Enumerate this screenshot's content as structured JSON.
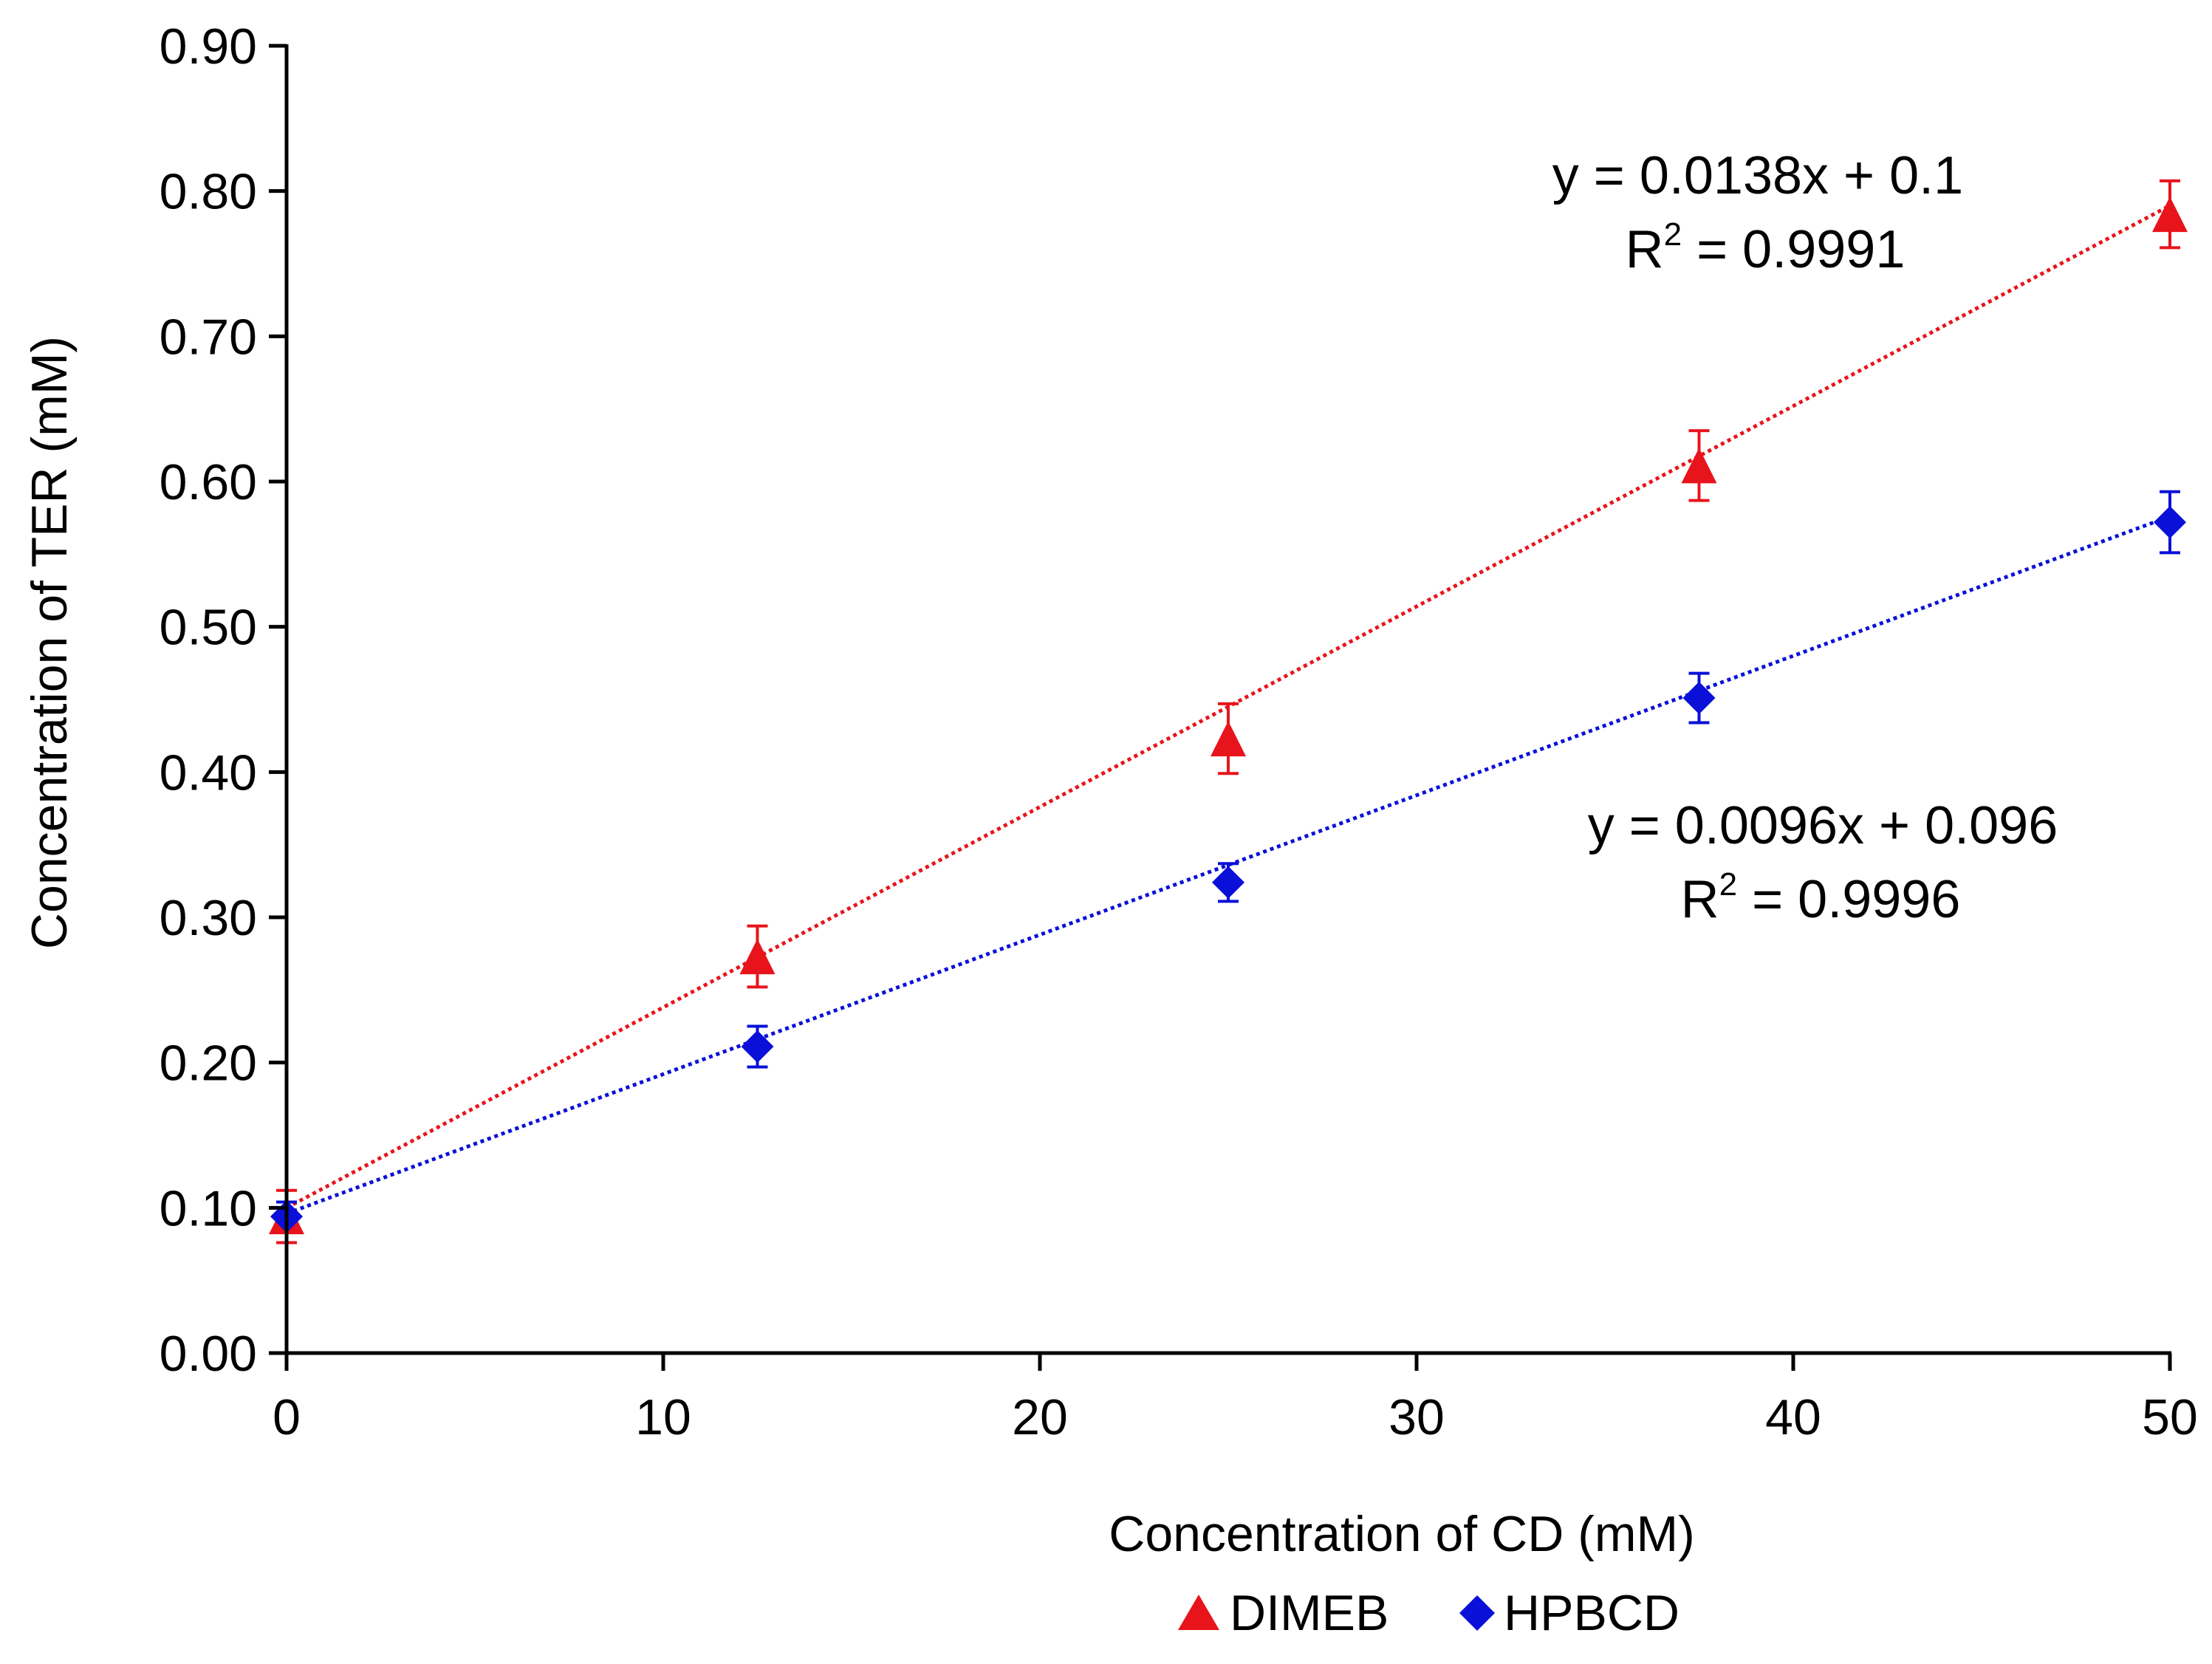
{
  "chart_data": {
    "type": "scatter",
    "xlabel": "Concentration of CD (mM)",
    "ylabel": "Concentration of TER (mM)",
    "xlim": [
      0,
      50
    ],
    "ylim": [
      0,
      0.9
    ],
    "x_ticks": [
      "0",
      "10",
      "20",
      "30",
      "40",
      "50"
    ],
    "y_ticks": [
      "0.00",
      "0.10",
      "0.20",
      "0.30",
      "0.40",
      "0.50",
      "0.60",
      "0.70",
      "0.80",
      "0.90"
    ],
    "grid": false,
    "legend_position": "bottom",
    "series": [
      {
        "name": "DIMEB",
        "marker": "triangle",
        "color": "#e8141b",
        "x": [
          0,
          12.5,
          25,
          37.5,
          50
        ],
        "y": [
          0.094,
          0.273,
          0.423,
          0.611,
          0.784
        ],
        "error": [
          0.018,
          0.021,
          0.024,
          0.024,
          0.023
        ],
        "trendline": {
          "slope": 0.0138,
          "intercept": 0.1
        },
        "equation": "y = 0.0138x + 0.1",
        "r2_prefix": "R",
        "r2_sup": "2",
        "r2_value": " = 0.9991"
      },
      {
        "name": "HPBCD",
        "marker": "diamond",
        "color": "#0a10d8",
        "x": [
          0,
          12.5,
          25,
          37.5,
          50
        ],
        "y": [
          0.094,
          0.211,
          0.324,
          0.451,
          0.572
        ],
        "error": [
          0.01,
          0.014,
          0.013,
          0.017,
          0.021
        ],
        "trendline": {
          "slope": 0.0096,
          "intercept": 0.096
        },
        "equation": "y = 0.0096x + 0.096",
        "r2_prefix": "R",
        "r2_sup": "2",
        "r2_value": " = 0.9996"
      }
    ]
  }
}
